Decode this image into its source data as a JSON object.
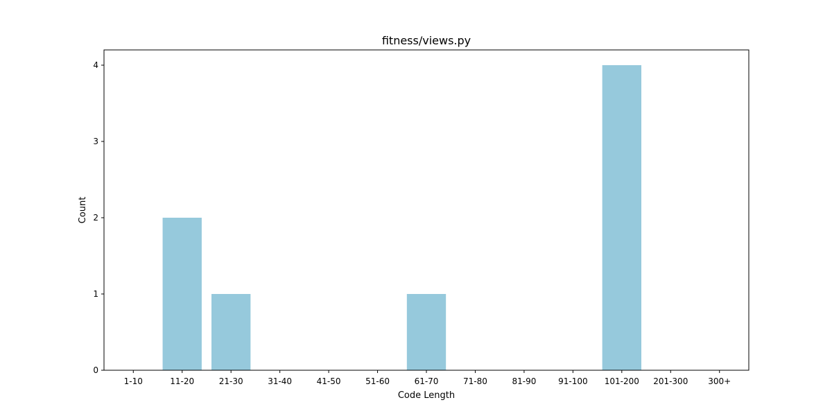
{
  "chart_data": {
    "type": "bar",
    "title": "fitness/views.py",
    "xlabel": "Code Length",
    "ylabel": "Count",
    "categories": [
      "1-10",
      "11-20",
      "21-30",
      "31-40",
      "41-50",
      "51-60",
      "61-70",
      "71-80",
      "81-90",
      "91-100",
      "101-200",
      "201-300",
      "300+"
    ],
    "values": [
      0,
      2,
      1,
      0,
      0,
      0,
      1,
      0,
      0,
      0,
      4,
      0,
      0
    ],
    "ylim": [
      0,
      4.2
    ],
    "yticks": [
      0,
      1,
      2,
      3,
      4
    ],
    "grid": false,
    "bar_color": "#96c9dc"
  }
}
